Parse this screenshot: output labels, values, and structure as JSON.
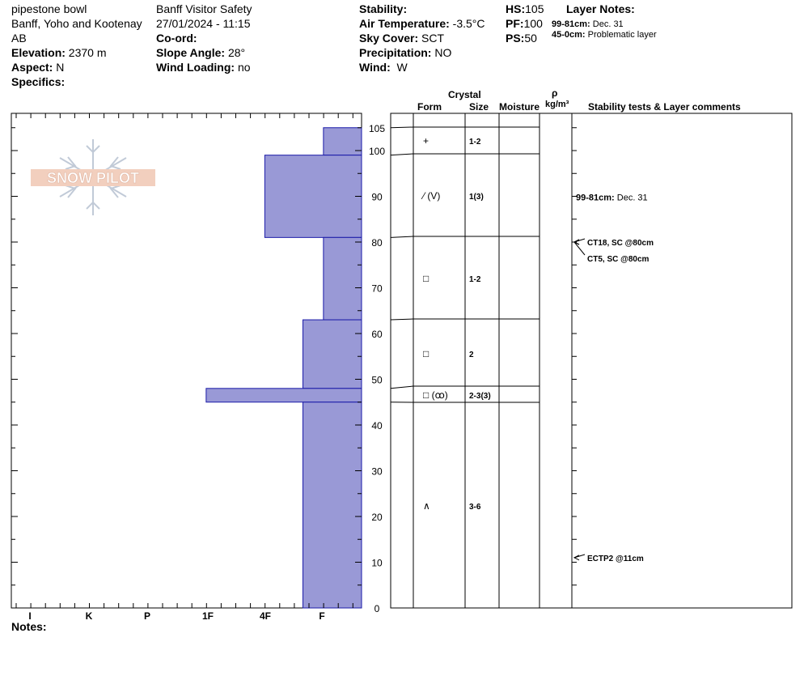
{
  "header": {
    "location": "pipestone bowl",
    "region": "Banff, Yoho and Kootenay",
    "province": "AB",
    "elevation_label": "Elevation:",
    "elevation": "2370 m",
    "aspect_label": "Aspect:",
    "aspect": "N",
    "specifics_label": "Specifics:",
    "observer": "Banff  Visitor Safety",
    "datetime": "27/01/2024 - 11:15",
    "coord_label": "Co-ord:",
    "slope_label": "Slope Angle:",
    "slope": "28°",
    "wind_loading_label": "Wind Loading:",
    "wind_loading": "no",
    "stability_label": "Stability:",
    "air_temp_label": "Air Temperature:",
    "air_temp": "-3.5°C",
    "sky_label": "Sky Cover:",
    "sky": "SCT",
    "precip_label": "Precipitation:",
    "precip": "NO",
    "wind_label": "Wind:",
    "wind": "W",
    "hs_label": "HS:",
    "hs": "105",
    "pf_label": "PF:",
    "pf": "100",
    "ps_label": "PS:",
    "ps": "50",
    "layer_notes_title": "Layer Notes:",
    "layer_notes": [
      {
        "depth": "99-81cm:",
        "text": "Dec. 31"
      },
      {
        "depth": "45-0cm:",
        "text": "Problematic layer"
      }
    ]
  },
  "columns": {
    "crystal": "Crystal",
    "form": "Form",
    "size": "Size",
    "moisture": "Moisture",
    "rho": "ρ",
    "density_unit": "kg/m³",
    "stability": "Stability tests & Layer comments"
  },
  "logo_text": "SNOW PILOT",
  "notes_label": "Notes:",
  "chart_data": {
    "type": "bar",
    "hardness_scale": [
      "I",
      "K",
      "P",
      "1F",
      "4F",
      "F"
    ],
    "height_ticks": [
      0,
      10,
      20,
      30,
      40,
      50,
      60,
      70,
      80,
      90,
      100,
      105
    ],
    "ylim": [
      0,
      105
    ],
    "bar_color": "#9999d6",
    "layers": [
      {
        "top": 105,
        "bottom": 99,
        "hardness": 0.65
      },
      {
        "top": 99,
        "bottom": 81,
        "hardness": 1.65
      },
      {
        "top": 81,
        "bottom": 63,
        "hardness": 0.65
      },
      {
        "top": 63,
        "bottom": 48,
        "hardness": 1.0
      },
      {
        "top": 48,
        "bottom": 45,
        "hardness": 2.65
      },
      {
        "top": 45,
        "bottom": 0,
        "hardness": 1.0
      }
    ],
    "layer_boundaries": [
      105,
      99,
      81,
      63,
      48,
      45,
      0
    ],
    "crystals": [
      {
        "mid": 102,
        "form": "+",
        "size": "1-2"
      },
      {
        "mid": 90,
        "form": "⁄ (V)",
        "size": "1(3)"
      },
      {
        "mid": 72,
        "form": "□",
        "size": "1-2"
      },
      {
        "mid": 55.5,
        "form": "□",
        "size": "2"
      },
      {
        "mid": 46.5,
        "form": "□ (ꝏ)",
        "size": "2-3(3)"
      },
      {
        "mid": 22.5,
        "form": "∧",
        "size": "3-6"
      }
    ],
    "comments": [
      {
        "height": 90,
        "bold": "99-81cm:",
        "text": "Dec. 31"
      }
    ],
    "tests": [
      {
        "height": 80,
        "label": "CT18, SC @80cm"
      },
      {
        "height": 80,
        "label": "CT5, SC @80cm"
      },
      {
        "height": 11,
        "label": "ECTP2 @11cm"
      }
    ]
  }
}
